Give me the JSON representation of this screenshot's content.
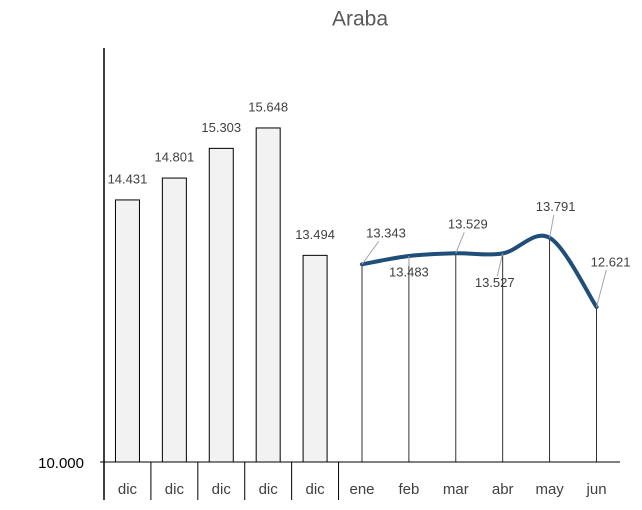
{
  "chart_data": {
    "type": "bar-line",
    "title": "Araba",
    "categories": [
      "dic",
      "dic",
      "dic",
      "dic",
      "dic",
      "ene",
      "feb",
      "mar",
      "abr",
      "may",
      "jun"
    ],
    "series": [
      {
        "type": "bar",
        "color": "#f2f2f2",
        "values": [
          14431,
          14801,
          15303,
          15648,
          13494,
          null,
          null,
          null,
          null,
          null,
          null
        ],
        "value_labels": [
          "14.431",
          "14.801",
          "15.303",
          "15.648",
          "13.494",
          null,
          null,
          null,
          null,
          null,
          null
        ]
      },
      {
        "type": "line",
        "color": "#1f4e79",
        "values": [
          null,
          null,
          null,
          null,
          null,
          13343,
          13483,
          13529,
          13527,
          13791,
          12621
        ],
        "value_labels": [
          null,
          null,
          null,
          null,
          null,
          "13.343",
          "13.483",
          "13.529",
          "13.527",
          "13.791",
          "12.621"
        ]
      }
    ],
    "ylim": [
      10000,
      17000
    ],
    "yticks": [
      {
        "value": 10000,
        "label": "10.000"
      }
    ],
    "grid": false
  }
}
